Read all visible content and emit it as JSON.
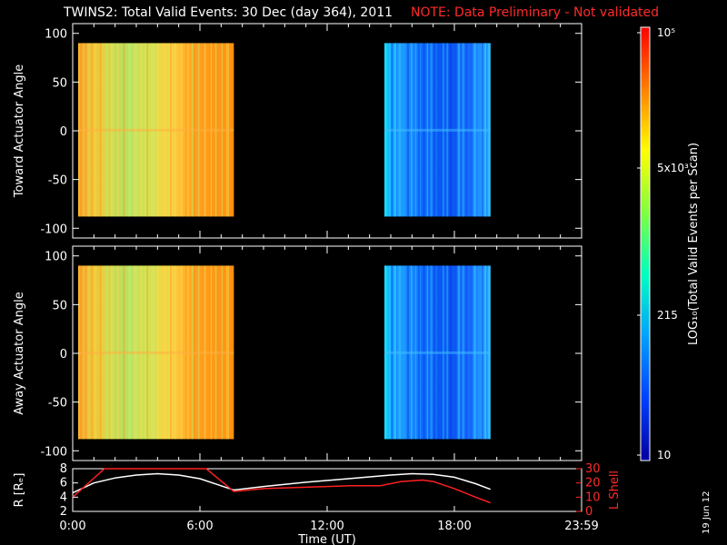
{
  "title": {
    "main": "TWINS2: Total Valid Events: 30 Dec (day 364), 2011",
    "note": "NOTE: Data Preliminary - Not validated"
  },
  "footer_date": "19 Jun 12",
  "colorbar": {
    "label": "LOG₁₀(Total Valid Events per Scan)",
    "ticks": [
      "10⁵",
      "5x10³",
      "215",
      "10"
    ],
    "tick_values": [
      100000,
      5000,
      215,
      10
    ],
    "colors": [
      "#ff0000",
      "#ff8000",
      "#ffff00",
      "#80ff40",
      "#00ffc0",
      "#00a0ff",
      "#0040ff",
      "#0000a0"
    ]
  },
  "chart_data": [
    {
      "type": "heatmap",
      "ylabel": "Toward Actuator Angle",
      "ylim": [
        -110,
        110
      ],
      "yticks": [
        100,
        50,
        0,
        -50,
        -100
      ],
      "xlim": [
        0,
        24
      ],
      "data_blocks": [
        {
          "x_range": [
            0.0,
            7.6
          ],
          "y_range": [
            -88,
            90
          ],
          "log10_level": 4.3
        },
        {
          "x_range": [
            14.7,
            19.7
          ],
          "y_range": [
            -88,
            90
          ],
          "log10_level": 2.1
        }
      ]
    },
    {
      "type": "heatmap",
      "ylabel": "Away Actuator Angle",
      "ylim": [
        -110,
        110
      ],
      "yticks": [
        100,
        50,
        0,
        -50,
        -100
      ],
      "xlim": [
        0,
        24
      ],
      "data_blocks": [
        {
          "x_range": [
            0.0,
            7.6
          ],
          "y_range": [
            -88,
            90
          ],
          "log10_level": 4.3
        },
        {
          "x_range": [
            14.7,
            19.7
          ],
          "y_range": [
            -88,
            90
          ],
          "log10_level": 2.0
        }
      ]
    },
    {
      "type": "line",
      "xlabel": "Time (UT)",
      "xticks": [
        "0:00",
        "6:00",
        "12:00",
        "18:00",
        "23:59"
      ],
      "xtick_values": [
        0,
        6,
        12,
        18,
        24
      ],
      "left_axis": {
        "ylabel": "R [Rₑ]",
        "ylim": [
          2,
          8
        ],
        "yticks": [
          8,
          6,
          4,
          2
        ]
      },
      "right_axis": {
        "ylabel": "L Shell",
        "ylim": [
          0,
          30
        ],
        "yticks": [
          30,
          20,
          10,
          0
        ]
      },
      "series": [
        {
          "axis": "left",
          "color": "#ffffff",
          "x": [
            0,
            1,
            2,
            3,
            4,
            5,
            6,
            7,
            7.6,
            9,
            11,
            13,
            15,
            16,
            17,
            18,
            19,
            19.7
          ],
          "y": [
            4.6,
            6.0,
            6.7,
            7.1,
            7.3,
            7.1,
            6.6,
            5.6,
            5.0,
            5.5,
            6.1,
            6.6,
            7.1,
            7.3,
            7.2,
            6.8,
            5.9,
            5.1
          ]
        },
        {
          "axis": "right",
          "color": "#ff2020",
          "x": [
            0,
            0.9,
            1.5,
            6.3,
            7.6,
            9,
            11,
            13,
            14.5,
            15.5,
            16.5,
            17,
            18,
            19,
            19.7
          ],
          "y": [
            10,
            22,
            33,
            33,
            14,
            16,
            17,
            18,
            18,
            21,
            22,
            21,
            16,
            10,
            6
          ]
        }
      ]
    }
  ]
}
